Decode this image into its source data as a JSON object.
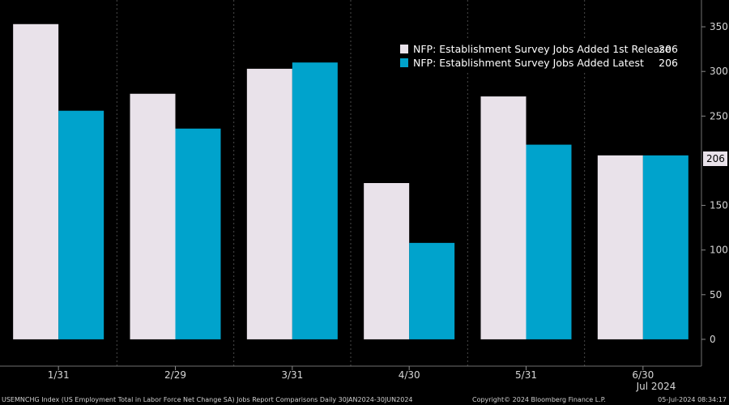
{
  "chart_data": {
    "type": "bar",
    "categories": [
      "1/31",
      "2/29",
      "3/31",
      "4/30",
      "5/31",
      "6/30"
    ],
    "x_period_label": "Jul 2024",
    "series": [
      {
        "name": "NFP: Establishment Survey Jobs Added 1st Release",
        "legend_value": "206",
        "color": "#e9e2ea",
        "values": [
          353,
          275,
          303,
          175,
          272,
          206
        ]
      },
      {
        "name": "NFP: Establishment Survey Jobs Added Latest",
        "legend_value": "206",
        "color": "#00a3cc",
        "values": [
          256,
          236,
          310,
          108,
          218,
          206
        ]
      }
    ],
    "ylim": [
      -30,
      380
    ],
    "yticks": [
      0,
      50,
      100,
      150,
      250,
      300,
      350
    ],
    "last_value_label": "206",
    "grid": "vertical dashed",
    "legend_position": "top-right"
  },
  "footer": {
    "left": "USEMNCHG Index (US Employment Total in Labor Force Net Change SA) Jobs Report Comparisons  Daily 30JAN2024-30JUN2024",
    "center": "Copyright© 2024 Bloomberg Finance L.P.",
    "right": "05-Jul-2024 08:34:17"
  }
}
